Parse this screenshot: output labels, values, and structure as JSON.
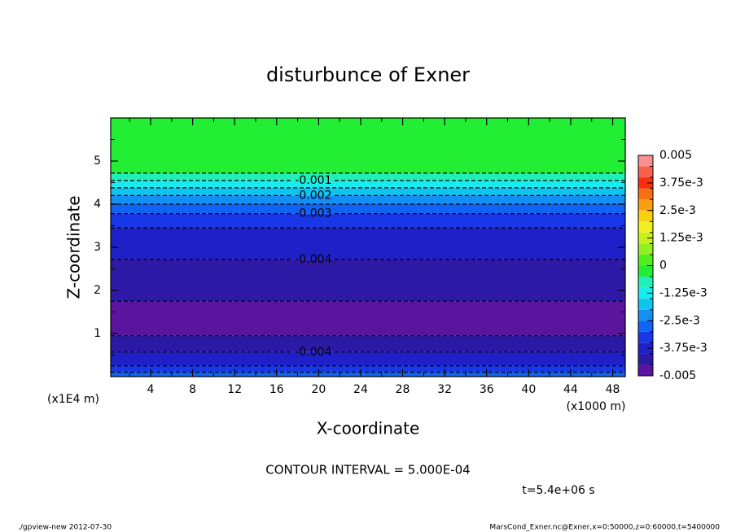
{
  "chart_data": {
    "type": "contour",
    "title": "disturbunce of Exner",
    "x_label": "X-coordinate",
    "y_label": "Z-coordinate",
    "x_unit": "(x1000 m)",
    "y_unit": "(x1E4 m)",
    "xlim": [
      0.2,
      49.2
    ],
    "xticks": [
      4,
      8,
      12,
      16,
      20,
      24,
      28,
      32,
      36,
      40,
      44,
      48
    ],
    "xminorticks": [
      2,
      6,
      10,
      14,
      18,
      22,
      26,
      30,
      34,
      38,
      42,
      46
    ],
    "ylim": [
      0,
      6
    ],
    "yticks": [
      1,
      2,
      3,
      4,
      5
    ],
    "yminorticks": [
      0.5,
      1.5,
      2.5,
      3.5,
      4.5,
      5.5
    ],
    "fill": {
      "z": [
        0,
        0.1,
        0.25,
        0.57,
        0.95,
        1.75,
        2.72,
        3.45,
        3.78,
        4.0,
        4.2,
        4.38,
        4.55,
        4.72
      ],
      "levels": [
        -0.003,
        -0.0035,
        -0.004,
        -0.0045,
        -0.005,
        -0.0045,
        -0.004,
        -0.0035,
        -0.003,
        -0.0025,
        -0.002,
        -0.0015,
        -0.001,
        -0.0005
      ]
    },
    "contours": {
      "z": [
        0.1,
        0.25,
        0.57,
        0.95,
        1.75,
        2.72,
        3.45,
        3.78,
        4.0,
        4.2,
        4.38,
        4.55,
        4.72
      ],
      "levels": [
        -0.003,
        -0.0035,
        -0.004,
        -0.0045,
        -0.0045,
        -0.004,
        -0.0035,
        -0.003,
        -0.0025,
        -0.002,
        -0.0015,
        -0.001,
        -0.0005
      ],
      "labels": [
        null,
        null,
        "-0.004",
        null,
        null,
        "-0.004",
        null,
        "-0.003",
        null,
        "-0.002",
        null,
        "-0.001",
        null
      ]
    },
    "colorbar": {
      "lim": [
        -0.005,
        0.005
      ],
      "levels": [
        -0.005,
        -0.0045,
        -0.004,
        -0.0035,
        -0.003,
        -0.0025,
        -0.002,
        -0.0015,
        -0.001,
        -0.0005,
        0,
        0.0005,
        0.001,
        0.0015,
        0.002,
        0.0025,
        0.003,
        0.0035,
        0.004,
        0.0045
      ],
      "colors": [
        "#5a149e",
        "#2c1aa6",
        "#2020c8",
        "#1838e8",
        "#1064f4",
        "#1490f4",
        "#10c4f0",
        "#18ecec",
        "#20f0b8",
        "#22ee33",
        "#50f020",
        "#90f020",
        "#c8f020",
        "#f0f020",
        "#f8d010",
        "#f8a010",
        "#f87010",
        "#f83010",
        "#f86050",
        "#f89090"
      ],
      "ticks": [
        0.005,
        {
          "value": 0.00375,
          "label": "3.75e-3"
        },
        {
          "value": 0.0025,
          "label": "2.5e-3"
        },
        {
          "value": 0.00125,
          "label": "1.25e-3"
        },
        0,
        {
          "value": -0.00125,
          "label": "-1.25e-3"
        },
        {
          "value": -0.0025,
          "label": "-2.5e-3"
        },
        {
          "value": -0.00375,
          "label": "-3.75e-3"
        },
        -0.005
      ]
    },
    "contour_interval": "CONTOUR INTERVAL = 5.000E-04",
    "time": "t=5.4e+06 s",
    "footer_left": "./gpview-new  2012-07-30",
    "footer_right": "MarsCond_Exner.nc@Exner,x=0:50000,z=0:60000,t=5400000"
  }
}
